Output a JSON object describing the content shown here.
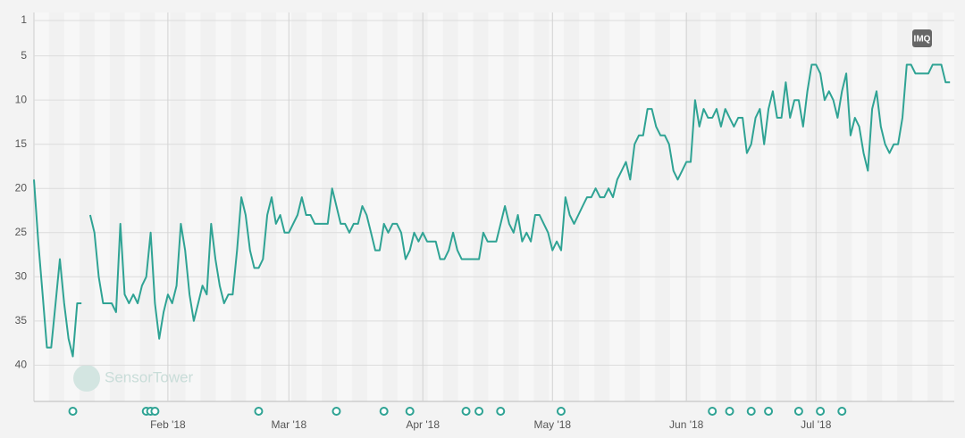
{
  "chart_data": {
    "type": "line",
    "badge": "IMQ",
    "watermark": "SensorTower",
    "x": [
      0,
      1,
      2,
      3,
      4,
      5,
      6,
      7,
      8,
      9,
      10,
      11,
      12,
      13,
      14,
      15,
      16,
      17,
      18,
      19,
      20,
      21,
      22,
      23,
      24,
      25,
      26,
      27,
      28,
      29,
      30,
      31,
      32,
      33,
      34,
      35,
      36,
      37,
      38,
      39,
      40,
      41,
      42,
      43,
      44,
      45,
      46,
      47,
      48,
      49,
      50,
      51,
      52,
      53,
      54,
      55,
      56,
      57,
      58,
      59,
      60,
      61,
      62,
      63,
      64,
      65,
      66,
      67,
      68,
      69,
      70,
      71,
      72,
      73,
      74,
      75,
      76,
      77,
      78,
      79,
      80,
      81,
      82,
      83,
      84,
      85,
      86,
      87,
      88,
      89,
      90,
      91,
      92,
      93,
      94,
      95,
      96,
      97,
      98,
      99,
      100,
      101,
      102,
      103,
      104,
      105,
      106,
      107,
      108,
      109,
      110,
      111,
      112,
      113,
      114,
      115,
      116,
      117,
      118,
      119,
      120,
      121,
      122,
      123,
      124,
      125,
      126,
      127,
      128,
      129,
      130,
      131,
      132,
      133,
      134,
      135,
      136,
      137,
      138,
      139,
      140,
      141,
      142,
      143,
      144,
      145,
      146,
      147,
      148,
      149,
      150,
      151,
      152,
      153,
      154,
      155,
      156,
      157,
      158,
      159,
      160,
      161,
      162,
      163,
      164,
      165,
      166,
      167,
      168,
      169,
      170,
      171,
      172,
      173,
      174,
      175,
      176,
      177,
      178,
      179,
      180,
      181,
      182,
      183,
      184,
      185,
      186,
      187,
      188,
      189,
      190,
      191,
      192,
      193,
      194,
      195,
      196,
      197,
      198,
      199,
      200,
      201,
      202,
      203,
      204,
      205,
      206,
      207,
      208,
      209,
      210,
      211,
      212
    ],
    "series": [
      {
        "color": "#2fa394",
        "values": [
          19,
          26,
          32,
          38,
          38,
          33,
          28,
          33,
          37,
          39,
          33,
          33,
          null,
          23,
          25,
          30,
          33,
          33,
          33,
          34,
          24,
          32,
          33,
          32,
          33,
          31,
          30,
          25,
          33,
          37,
          34,
          32,
          33,
          31,
          24,
          27,
          32,
          35,
          33,
          31,
          32,
          24,
          28,
          31,
          33,
          32,
          32,
          27,
          21,
          23,
          27,
          29,
          29,
          28,
          23,
          21,
          24,
          23,
          25,
          25,
          24,
          23,
          21,
          23,
          23,
          24,
          24,
          24,
          24,
          20,
          22,
          24,
          24,
          25,
          24,
          24,
          22,
          23,
          25,
          27,
          27,
          24,
          25,
          24,
          24,
          25,
          28,
          27,
          25,
          26,
          25,
          26,
          26,
          26,
          28,
          28,
          27,
          25,
          27,
          28,
          28,
          28,
          28,
          28,
          25,
          26,
          26,
          26,
          24,
          22,
          24,
          25,
          23,
          26,
          25,
          26,
          23,
          23,
          24,
          25,
          27,
          26,
          27,
          21,
          23,
          24,
          23,
          22,
          21,
          21,
          20,
          21,
          21,
          20,
          21,
          19,
          18,
          17,
          19,
          15,
          14,
          14,
          11,
          11,
          13,
          14,
          14,
          15,
          18,
          19,
          18,
          17,
          17,
          10,
          13,
          11,
          12,
          12,
          11,
          13,
          11,
          12,
          13,
          12,
          12,
          16,
          15,
          12,
          11,
          15,
          11,
          9,
          12,
          12,
          8,
          12,
          10,
          10,
          13,
          9,
          6,
          6,
          7,
          10,
          9,
          10,
          12,
          9,
          7,
          14,
          12,
          13,
          16,
          18,
          11,
          9,
          13,
          15,
          16,
          15,
          15,
          12,
          6,
          6,
          7,
          7,
          7,
          7,
          6,
          6,
          6,
          8,
          8
        ]
      }
    ],
    "xlim": [
      0,
      213
    ],
    "xticks": [
      {
        "value": 31,
        "label": "Feb '18"
      },
      {
        "value": 59,
        "label": "Mar '18"
      },
      {
        "value": 90,
        "label": "Apr '18"
      },
      {
        "value": 120,
        "label": "May '18"
      },
      {
        "value": 151,
        "label": "Jun '18"
      },
      {
        "value": 181,
        "label": "Jul '18"
      }
    ],
    "ylim": [
      1,
      44
    ],
    "y_inverted": true,
    "yticks": [
      1,
      5,
      10,
      15,
      20,
      25,
      30,
      35,
      40
    ],
    "grid": true,
    "events": [
      9,
      26,
      27,
      28,
      52,
      70,
      81,
      87,
      100,
      103,
      108,
      122,
      157,
      161,
      166,
      170,
      177,
      182,
      187
    ]
  }
}
